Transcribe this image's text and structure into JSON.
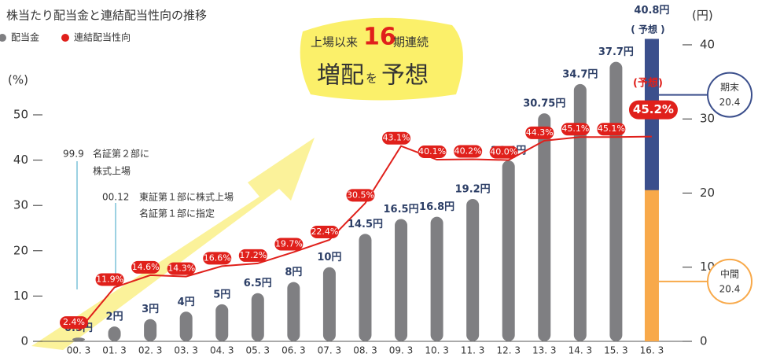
{
  "chart_data": {
    "type": "bar_line",
    "title": "株当たり配当金と連結配当性向の推移",
    "y_label": "(%)",
    "y2_label": "(円)",
    "categories": [
      "00. 3",
      "01. 3",
      "02. 3",
      "03. 3",
      "04. 3",
      "05. 3",
      "06. 3",
      "07. 3",
      "08. 3",
      "09. 3",
      "10. 3",
      "11. 3",
      "12. 3",
      "13. 3",
      "14. 3",
      "15. 3",
      "16. 3"
    ],
    "series": [
      {
        "name": "配当金",
        "color": "#7f7f82",
        "axis": "y2",
        "values": [
          0.5,
          2,
          3,
          4,
          5,
          6.5,
          8,
          10,
          14.5,
          16.5,
          16.8,
          19.2,
          24.4,
          30.75,
          34.7,
          37.7,
          40.8
        ],
        "value_labels": [
          "0.5円",
          "2円",
          "3円",
          "4円",
          "5円",
          "6.5円",
          "8円",
          "10円",
          "14.5円",
          "16.5円",
          "16.8円",
          "19.2円",
          "24.4円",
          "30.75円",
          "34.7円",
          "37.7円",
          "40.8円"
        ]
      },
      {
        "name": "連結配当性向",
        "color": "#e0201b",
        "values": [
          2.4,
          11.9,
          14.6,
          14.3,
          16.6,
          17.2,
          19.7,
          22.4,
          30.5,
          43.1,
          40.1,
          40.2,
          40.0,
          44.3,
          45.1,
          45.1,
          45.2
        ],
        "value_labels": [
          "2.4%",
          "11.9%",
          "14.6%",
          "14.3%",
          "16.6%",
          "17.2%",
          "19.7%",
          "22.4%",
          "30.5%",
          "43.1%",
          "40.1%",
          "40.2%",
          "40.0%",
          "44.3%",
          "45.1%",
          "45.1%",
          "45.2%"
        ]
      }
    ],
    "forecast_breakdown": [
      {
        "name": "中間",
        "value": 20.4,
        "color": "#f8a94a"
      },
      {
        "name": "期末",
        "value": 20.4,
        "color": "#3b4f8c"
      }
    ],
    "forecast_note": "( 予想 )",
    "ratio_forecast_note": "(予想)",
    "ylim": [
      0,
      68.4
    ],
    "yticks": [
      0,
      10,
      20,
      30,
      40,
      50
    ],
    "y2lim": [
      0,
      41.8
    ],
    "y2ticks": [
      0,
      10,
      20,
      30,
      40
    ],
    "annotations": [
      {
        "date": "99.9",
        "lines": [
          "名証第２部に",
          "株式上場"
        ]
      },
      {
        "date": "00.12",
        "lines": [
          "東証第１部に株式上場",
          "名証第１部に指定"
        ]
      }
    ],
    "headline": {
      "pre": "上場以来",
      "count": "16",
      "post": "期連続",
      "main": "増配",
      "particle": "を",
      "end": "予想"
    }
  }
}
